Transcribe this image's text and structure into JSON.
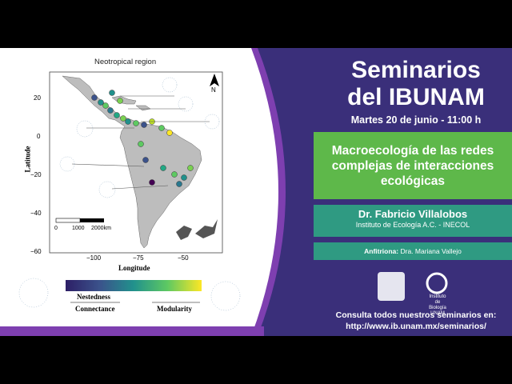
{
  "header": {
    "title_line1": "Seminarios",
    "title_line2": "del IBUNAM",
    "date": "Martes 20 de junio - 11:00 h"
  },
  "talk": {
    "title_line1": "Macroecología de las redes",
    "title_line2": "complejas de interacciones",
    "title_line3": "ecológicas"
  },
  "speaker": {
    "name": "Dr. Fabricio Villalobos",
    "institution": "Instituto de Ecología A.C. - INECOL"
  },
  "host": {
    "label": "Anfitriona:",
    "name": "Dra. Mariana Vallejo"
  },
  "logos": {
    "ib_caption_1": "Instituto",
    "ib_caption_2": "de Biología",
    "ib_caption_3": "UNAM"
  },
  "footer": {
    "line1": "Consulta todos nuestros seminarios en:",
    "url": "http://www.ib.unam.mx/seminarios/"
  },
  "figure": {
    "map_title": "Neotropical region",
    "ylabel": "Latitude",
    "xlabel": "Longitude",
    "north": "N",
    "y_ticks": [
      "20",
      "0",
      "−20",
      "−40",
      "−60"
    ],
    "x_ticks": [
      "−100",
      "−75",
      "−50"
    ],
    "scale_labels": [
      "0",
      "1000",
      "2000km"
    ],
    "legend_left_1": "Nestedness",
    "legend_left_2": "Connectance",
    "legend_right": "Modularity"
  },
  "colors": {
    "poster_bg": "#3a2f7a",
    "green_band": "#5eb84a",
    "teal_band": "#2f9a82",
    "land": "#bdbdbd"
  }
}
